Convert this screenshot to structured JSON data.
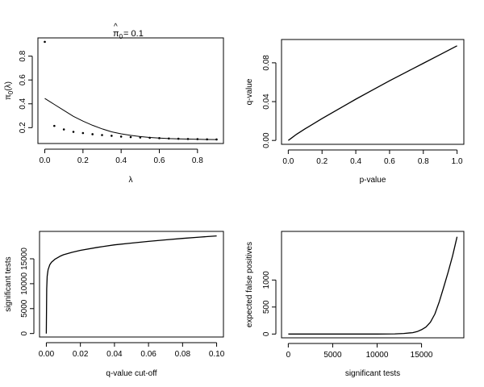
{
  "chart_data": [
    {
      "type": "scatter",
      "title_base": "π",
      "title_sub": "0",
      "title_hat": "^",
      "title_value": "= 0.1",
      "xlabel": "λ",
      "ylabel_main": "π",
      "ylabel_sub": "0",
      "ylabel_tail": "(λ)",
      "xlim": [
        -0.036,
        0.936
      ],
      "ylim": [
        0.067,
        0.953
      ],
      "xticks": [
        0.0,
        0.2,
        0.4,
        0.6,
        0.8
      ],
      "xtick_labels": [
        "0.0",
        "0.2",
        "0.4",
        "0.6",
        "0.8"
      ],
      "yticks": [
        0.2,
        0.4,
        0.6,
        0.8
      ],
      "ytick_labels": [
        "0.2",
        "0.4",
        "0.6",
        "0.8"
      ],
      "points": {
        "x": [
          0.0,
          0.05,
          0.1,
          0.15,
          0.2,
          0.25,
          0.3,
          0.35,
          0.4,
          0.45,
          0.5,
          0.55,
          0.6,
          0.65,
          0.7,
          0.75,
          0.8,
          0.85,
          0.9
        ],
        "y": [
          0.92,
          0.215,
          0.185,
          0.165,
          0.155,
          0.145,
          0.138,
          0.132,
          0.125,
          0.121,
          0.118,
          0.115,
          0.112,
          0.109,
          0.107,
          0.105,
          0.104,
          0.102,
          0.101
        ]
      },
      "smooth_curve": {
        "x": [
          0.0,
          0.05,
          0.1,
          0.15,
          0.2,
          0.25,
          0.3,
          0.35,
          0.4,
          0.45,
          0.5,
          0.55,
          0.6,
          0.65,
          0.7,
          0.75,
          0.8,
          0.85,
          0.9
        ],
        "y": [
          0.445,
          0.395,
          0.345,
          0.295,
          0.255,
          0.22,
          0.19,
          0.165,
          0.148,
          0.135,
          0.125,
          0.118,
          0.112,
          0.108,
          0.106,
          0.104,
          0.102,
          0.101,
          0.1
        ]
      }
    },
    {
      "type": "line",
      "title": "",
      "xlabel": "p-value",
      "ylabel": "q-value",
      "xlim": [
        -0.04,
        1.04
      ],
      "ylim": [
        -0.004,
        0.104
      ],
      "xticks": [
        0.0,
        0.2,
        0.4,
        0.6,
        0.8,
        1.0
      ],
      "xtick_labels": [
        "0.0",
        "0.2",
        "0.4",
        "0.6",
        "0.8",
        "1.0"
      ],
      "yticks": [
        0.0,
        0.04,
        0.08
      ],
      "ytick_labels": [
        "0.00",
        "0.04",
        "0.08"
      ],
      "series": [
        {
          "name": "q-value",
          "x": [
            0.0,
            0.05,
            0.1,
            0.2,
            0.3,
            0.4,
            0.5,
            0.6,
            0.7,
            0.8,
            0.9,
            1.0
          ],
          "y": [
            0.0,
            0.0065,
            0.012,
            0.0225,
            0.0325,
            0.0425,
            0.052,
            0.0615,
            0.0705,
            0.0795,
            0.0885,
            0.0975
          ]
        }
      ]
    },
    {
      "type": "line",
      "title": "",
      "xlabel": "q-value cut-off",
      "ylabel": "significant tests",
      "xlim": [
        -0.004,
        0.104
      ],
      "ylim": [
        -700,
        20500
      ],
      "xticks": [
        0.0,
        0.02,
        0.04,
        0.06,
        0.08,
        0.1
      ],
      "xtick_labels": [
        "0.00",
        "0.02",
        "0.04",
        "0.06",
        "0.08",
        "0.10"
      ],
      "yticks": [
        0,
        5000,
        10000,
        15000
      ],
      "ytick_labels": [
        "0",
        "5000",
        "10000",
        "15000"
      ],
      "series": [
        {
          "name": "significant tests",
          "x": [
            0.0,
            0.0002,
            0.0005,
            0.001,
            0.002,
            0.003,
            0.005,
            0.008,
            0.01,
            0.015,
            0.02,
            0.03,
            0.04,
            0.05,
            0.06,
            0.07,
            0.08,
            0.09,
            0.1
          ],
          "y": [
            0,
            9000,
            11500,
            12800,
            13800,
            14300,
            14900,
            15500,
            15800,
            16300,
            16700,
            17300,
            17800,
            18150,
            18500,
            18800,
            19100,
            19350,
            19600
          ]
        }
      ]
    },
    {
      "type": "line",
      "title": "",
      "xlabel": "significant tests",
      "ylabel": "expected false positives",
      "xlim": [
        -760,
        19760
      ],
      "ylim": [
        -70,
        1900
      ],
      "xticks": [
        0,
        5000,
        10000,
        15000
      ],
      "xtick_labels": [
        "0",
        "5000",
        "10000",
        "15000"
      ],
      "yticks": [
        0,
        500,
        1000
      ],
      "ytick_labels": [
        "0",
        "500",
        "1000"
      ],
      "series": [
        {
          "name": "expected false positives",
          "x": [
            0,
            5000,
            10000,
            12000,
            13000,
            14000,
            14500,
            15000,
            15500,
            16000,
            16500,
            17000,
            17500,
            18000,
            18500,
            19000
          ],
          "y": [
            0,
            0,
            0,
            3,
            10,
            25,
            45,
            80,
            130,
            220,
            370,
            600,
            870,
            1150,
            1450,
            1800
          ]
        }
      ]
    }
  ]
}
